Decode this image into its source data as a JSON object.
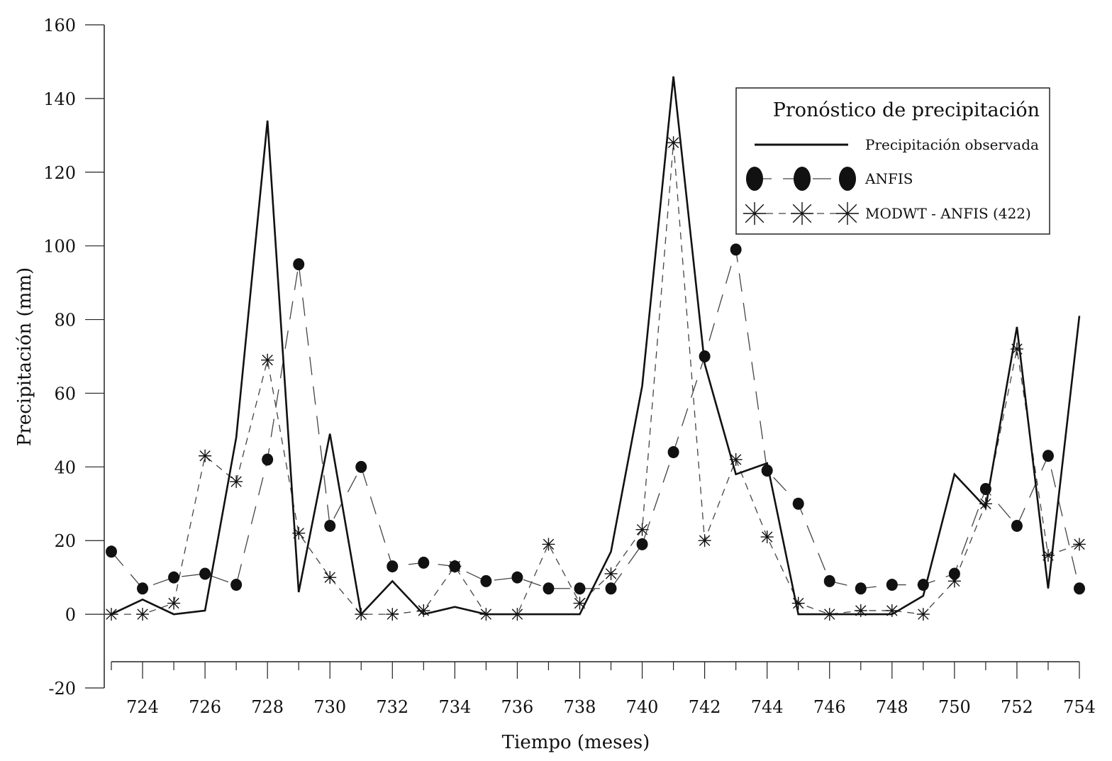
{
  "chart_data": {
    "type": "line",
    "title": "",
    "xlabel": "Tiempo (meses)",
    "ylabel": "Precipitación (mm)",
    "xlim": [
      723,
      754
    ],
    "ylim": [
      -20,
      160
    ],
    "yticks": [
      -20,
      0,
      20,
      40,
      60,
      80,
      100,
      120,
      140,
      160
    ],
    "xticks": [
      724,
      726,
      728,
      730,
      732,
      734,
      736,
      738,
      740,
      742,
      744,
      746,
      748,
      750,
      752,
      754
    ],
    "x": [
      723,
      724,
      725,
      726,
      727,
      728,
      729,
      730,
      731,
      732,
      733,
      734,
      735,
      736,
      737,
      738,
      739,
      740,
      741,
      742,
      743,
      744,
      745,
      746,
      747,
      748,
      749,
      750,
      751,
      752,
      753,
      754
    ],
    "legend_title": "Pronóstico de precipitación",
    "legend_position": "top-right",
    "grid": false,
    "series": [
      {
        "name": "Precipitación observada",
        "style": "solid",
        "marker": "none",
        "values": [
          0,
          4,
          0,
          1,
          48,
          134,
          6,
          49,
          0,
          9,
          0,
          2,
          0,
          0,
          0,
          0,
          17,
          62,
          146,
          68,
          38,
          41,
          0,
          0,
          0,
          0,
          5,
          38,
          29,
          78,
          7,
          81
        ]
      },
      {
        "name": "ANFIS",
        "style": "long-dash",
        "marker": "circle",
        "values": [
          17,
          7,
          10,
          11,
          8,
          42,
          95,
          24,
          40,
          13,
          14,
          13,
          9,
          10,
          7,
          7,
          7,
          19,
          44,
          70,
          99,
          39,
          30,
          9,
          7,
          8,
          8,
          11,
          34,
          24,
          43,
          7
        ]
      },
      {
        "name": "MODWT - ANFIS (422)",
        "style": "short-dash",
        "marker": "asterisk",
        "values": [
          0,
          0,
          3,
          43,
          36,
          69,
          22,
          10,
          0,
          0,
          1,
          13,
          0,
          0,
          19,
          3,
          11,
          23,
          128,
          20,
          42,
          21,
          3,
          0,
          1,
          1,
          0,
          9,
          30,
          72,
          16,
          19
        ]
      }
    ],
    "colors": {
      "line": "#111111",
      "dash": "#444444",
      "marker": "#111111"
    }
  }
}
